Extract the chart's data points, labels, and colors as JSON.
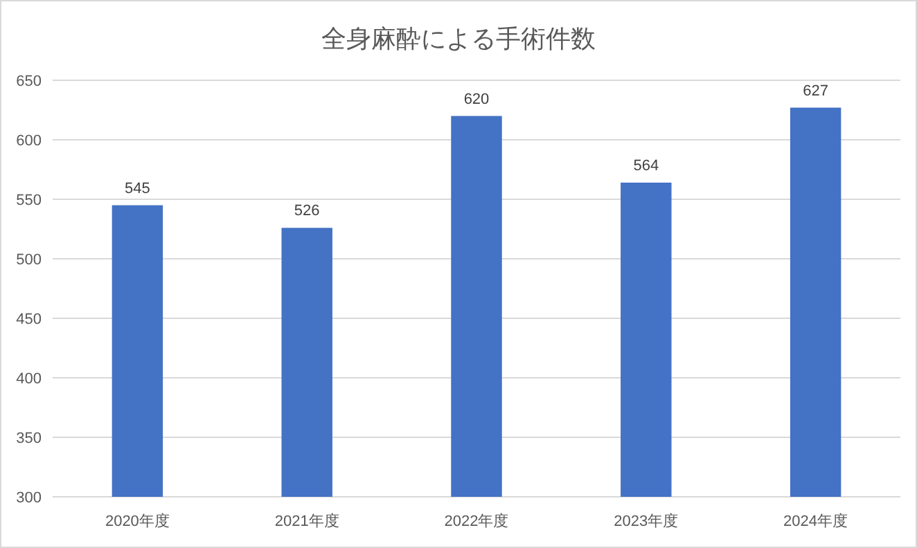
{
  "chart_data": {
    "type": "bar",
    "title": "全身麻酔による手術件数",
    "categories": [
      "2020年度",
      "2021年度",
      "2022年度",
      "2023年度",
      "2024年度"
    ],
    "values": [
      545,
      526,
      620,
      564,
      627
    ],
    "color": "#4472c4",
    "ylim": [
      300,
      650
    ],
    "yticks": [
      300,
      350,
      400,
      450,
      500,
      550,
      600,
      650
    ],
    "grid": "y",
    "data_labels": true
  }
}
